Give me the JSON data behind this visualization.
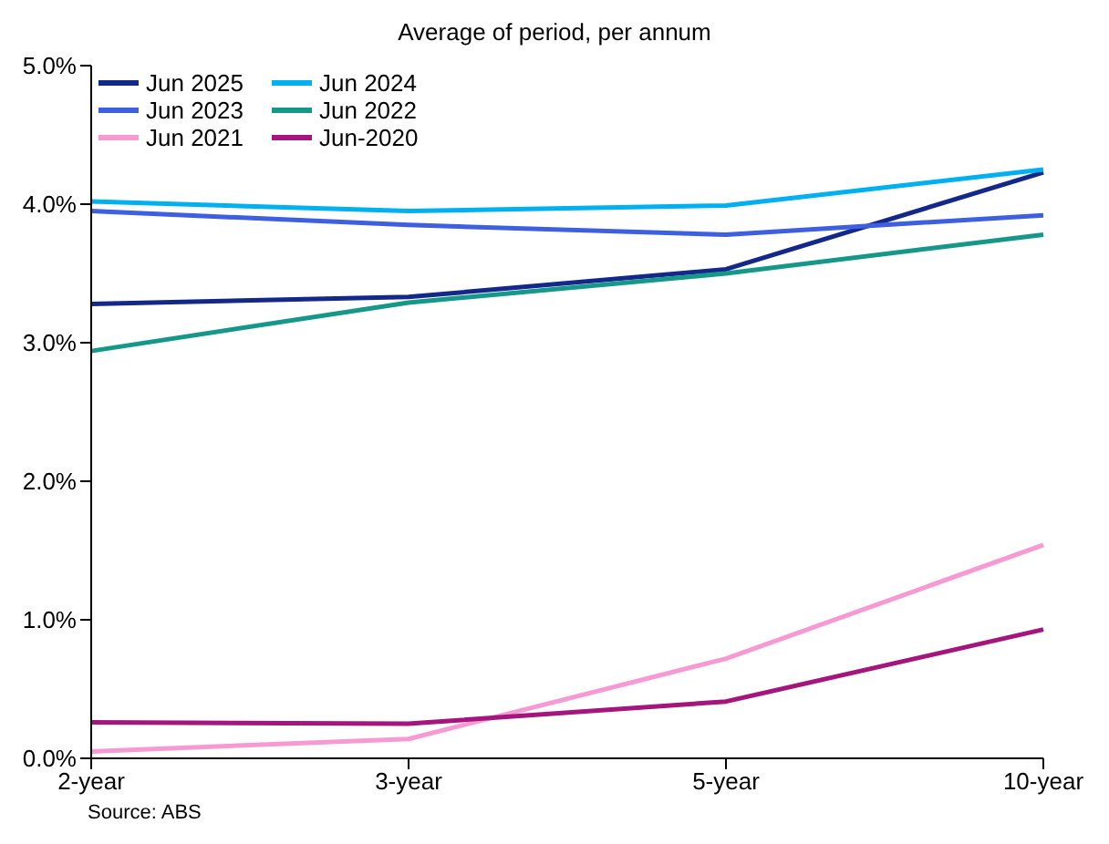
{
  "chart_data": {
    "type": "line",
    "title": "Average of period, per annum",
    "categories": [
      "2-year",
      "3-year",
      "5-year",
      "10-year"
    ],
    "series": [
      {
        "name": "Jun 2025",
        "color": "#14288a",
        "values": [
          3.28,
          3.33,
          3.53,
          4.23
        ]
      },
      {
        "name": "Jun 2024",
        "color": "#00b0f0",
        "values": [
          4.02,
          3.95,
          3.99,
          4.25
        ]
      },
      {
        "name": "Jun 2023",
        "color": "#3d5fe0",
        "values": [
          3.95,
          3.85,
          3.78,
          3.92
        ]
      },
      {
        "name": "Jun 2022",
        "color": "#15978a",
        "values": [
          2.94,
          3.29,
          3.5,
          3.78
        ]
      },
      {
        "name": "Jun 2021",
        "color": "#f79ad3",
        "values": [
          0.05,
          0.14,
          0.72,
          1.54
        ]
      },
      {
        "name": "Jun-2020",
        "color": "#a5157e",
        "values": [
          0.26,
          0.25,
          0.41,
          0.93
        ]
      }
    ],
    "ylim": [
      0,
      5
    ],
    "yticks": [
      {
        "value": 0,
        "label": "0.0%"
      },
      {
        "value": 1,
        "label": "1.0%"
      },
      {
        "value": 2,
        "label": "2.0%"
      },
      {
        "value": 3,
        "label": "3.0%"
      },
      {
        "value": 4,
        "label": "4.0%"
      },
      {
        "value": 5,
        "label": "5.0%"
      }
    ],
    "legend": "top left",
    "grid": false,
    "marker": "none",
    "line_style": "solid",
    "annotations": [
      "Source: ABS"
    ]
  }
}
